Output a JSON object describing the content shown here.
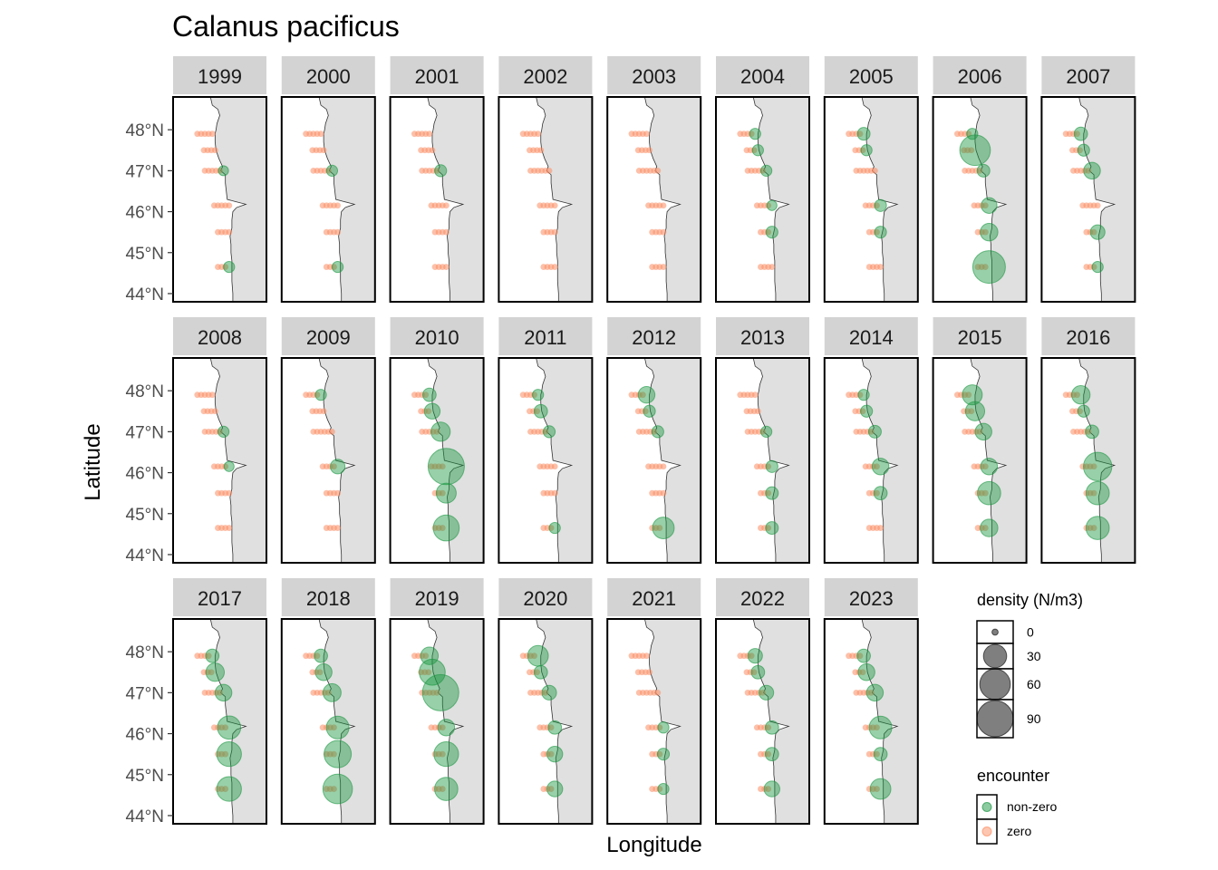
{
  "chart_data": {
    "type": "scatter",
    "title": "Calanus pacificus",
    "xlabel": "Longitude",
    "ylabel": "Latitude",
    "facet_by": "year",
    "panels": [
      "1999",
      "2000",
      "2001",
      "2002",
      "2003",
      "2004",
      "2005",
      "2006",
      "2007",
      "2008",
      "2009",
      "2010",
      "2011",
      "2012",
      "2013",
      "2014",
      "2015",
      "2016",
      "2017",
      "2018",
      "2019",
      "2020",
      "2021",
      "2022",
      "2023"
    ],
    "y_ticks": [
      "48°N",
      "47°N",
      "46°N",
      "45°N",
      "44°N"
    ],
    "y_tick_values": [
      48,
      47,
      46,
      45,
      44
    ],
    "ylim": [
      43.8,
      48.8
    ],
    "transect_latitudes": [
      47.9,
      47.5,
      47.0,
      46.15,
      45.5,
      44.65
    ],
    "legend": {
      "size_title": "density (N/m3)",
      "size_breaks": [
        0,
        30,
        60,
        90
      ],
      "size_labels": [
        "0",
        "30",
        "60",
        "90"
      ],
      "color_title": "encounter",
      "color_labels": [
        "non-zero",
        "zero"
      ],
      "colors": {
        "non-zero": "#1a9641",
        "zero": "#fc8d62"
      }
    },
    "land_color": "#e0e0e0",
    "strip_color": "#d3d3d3",
    "grid": false,
    "coastal_density_by_year": {
      "1999": [
        0,
        0,
        2,
        0,
        0,
        3
      ],
      "2000": [
        0,
        0,
        3,
        0,
        0,
        3
      ],
      "2001": [
        0,
        0,
        4,
        0,
        0,
        0
      ],
      "2002": [
        0,
        0,
        0,
        0,
        0,
        0
      ],
      "2003": [
        0,
        0,
        0,
        0,
        0,
        0
      ],
      "2004": [
        3,
        3,
        3,
        2,
        4,
        0
      ],
      "2005": [
        5,
        3,
        0,
        4,
        4,
        0
      ],
      "2006": [
        3,
        60,
        5,
        10,
        14,
        70
      ],
      "2007": [
        6,
        4,
        12,
        0,
        8,
        3
      ],
      "2008": [
        0,
        0,
        3,
        2,
        0,
        0
      ],
      "2009": [
        3,
        0,
        0,
        8,
        0,
        0
      ],
      "2010": [
        6,
        10,
        18,
        90,
        20,
        40
      ],
      "2011": [
        3,
        6,
        4,
        0,
        0,
        3
      ],
      "2012": [
        12,
        4,
        4,
        0,
        0,
        25
      ],
      "2013": [
        0,
        0,
        3,
        4,
        5,
        5
      ],
      "2014": [
        3,
        4,
        5,
        12,
        6,
        0
      ],
      "2015": [
        20,
        18,
        12,
        12,
        30,
        14
      ],
      "2016": [
        16,
        4,
        6,
        50,
        30,
        30
      ],
      "2017": [
        6,
        16,
        12,
        30,
        35,
        35
      ],
      "2018": [
        6,
        12,
        15,
        28,
        45,
        55
      ],
      "2019": [
        14,
        40,
        90,
        12,
        35,
        30
      ],
      "2020": [
        22,
        6,
        8,
        6,
        10,
        10
      ],
      "2021": [
        0,
        0,
        0,
        3,
        4,
        3
      ],
      "2022": [
        8,
        6,
        8,
        6,
        6,
        10
      ],
      "2023": [
        6,
        12,
        12,
        28,
        6,
        22
      ]
    }
  }
}
